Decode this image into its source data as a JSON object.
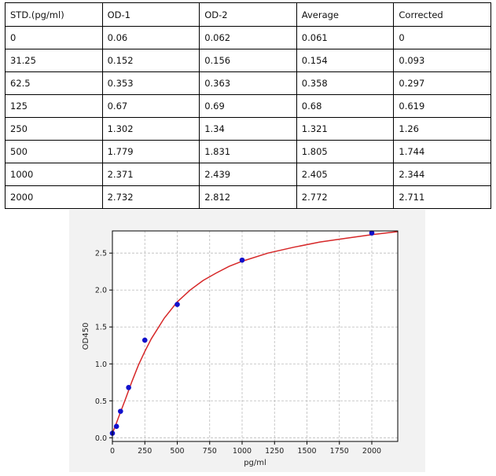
{
  "table": {
    "headers": [
      "STD.(pg/ml)",
      "OD-1",
      "OD-2",
      "Average",
      "Corrected"
    ],
    "rows": [
      [
        "0",
        "0.06",
        "0.062",
        "0.061",
        "0"
      ],
      [
        "31.25",
        "0.152",
        "0.156",
        "0.154",
        "0.093"
      ],
      [
        "62.5",
        "0.353",
        "0.363",
        "0.358",
        "0.297"
      ],
      [
        "125",
        "0.67",
        "0.69",
        "0.68",
        "0.619"
      ],
      [
        "250",
        "1.302",
        "1.34",
        "1.321",
        "1.26"
      ],
      [
        "500",
        "1.779",
        "1.831",
        "1.805",
        "1.744"
      ],
      [
        "1000",
        "2.371",
        "2.439",
        "2.405",
        "2.344"
      ],
      [
        "2000",
        "2.732",
        "2.812",
        "2.772",
        "2.711"
      ]
    ]
  },
  "chart_data": {
    "type": "scatter",
    "xlabel": "pg/ml",
    "ylabel": "OD450",
    "xlim": [
      0,
      2200
    ],
    "ylim": [
      -0.05,
      2.8
    ],
    "x_ticks": [
      "0",
      "250",
      "500",
      "750",
      "1000",
      "1250",
      "1500",
      "1750",
      "2000"
    ],
    "y_ticks": [
      "0.0",
      "0.5",
      "1.0",
      "1.5",
      "2.0",
      "2.5"
    ],
    "grid": true,
    "points": {
      "x": [
        0,
        31.25,
        62.5,
        125,
        250,
        500,
        1000,
        2000
      ],
      "y": [
        0.061,
        0.154,
        0.358,
        0.68,
        1.321,
        1.805,
        2.405,
        2.772
      ],
      "color": "#1111cc"
    },
    "fit_curve": {
      "color": "#d62728",
      "x": [
        0,
        25,
        50,
        100,
        150,
        200,
        250,
        300,
        400,
        500,
        600,
        700,
        800,
        900,
        1000,
        1200,
        1400,
        1600,
        1800,
        2000,
        2200
      ],
      "y": [
        0.06,
        0.17,
        0.29,
        0.52,
        0.76,
        0.98,
        1.17,
        1.34,
        1.62,
        1.84,
        2.0,
        2.13,
        2.23,
        2.32,
        2.39,
        2.5,
        2.58,
        2.65,
        2.7,
        2.75,
        2.79
      ]
    }
  }
}
